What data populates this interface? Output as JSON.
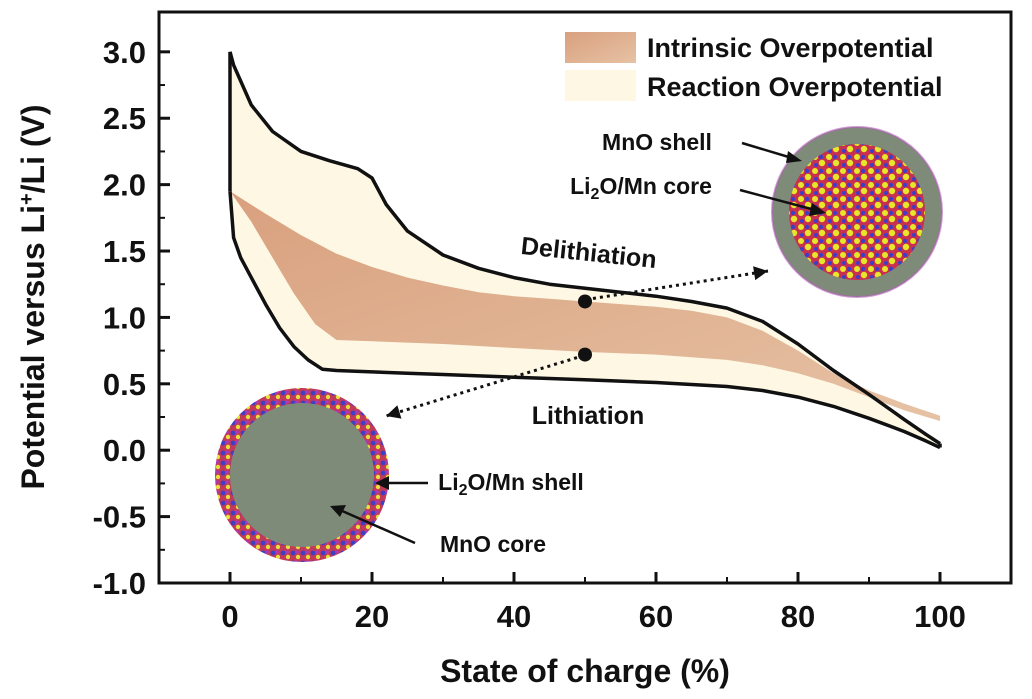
{
  "chart_data": {
    "type": "area",
    "xlabel": "State of charge (%)",
    "ylabel_main": "Potential versus Li",
    "ylabel_sup": "+",
    "ylabel_end": "/Li (V)",
    "xlim": [
      -10,
      110
    ],
    "ylim": [
      -1.0,
      3.3
    ],
    "xticks": [
      0,
      20,
      40,
      60,
      80,
      100
    ],
    "yticks": [
      3.0,
      2.5,
      2.0,
      1.5,
      1.0,
      0.5,
      0.0,
      -0.5,
      -1.0
    ],
    "ytick_labels": [
      "3.0",
      "2.5",
      "2.0",
      "1.5",
      "1.0",
      "0.5",
      "0.0",
      "-0.5",
      "-1.0"
    ],
    "legend": [
      {
        "label": "Intrinsic Overpotential",
        "color": "#dba888"
      },
      {
        "label": "Reaction Overpotential",
        "color": "#fdf7e4"
      }
    ],
    "series": [
      {
        "name": "Delithiation",
        "x": [
          0,
          0.5,
          3,
          6,
          10,
          14,
          18,
          20,
          22,
          25,
          30,
          35,
          40,
          45,
          50,
          55,
          60,
          65,
          70,
          75,
          80,
          85,
          90,
          95,
          98,
          100
        ],
        "y": [
          3.0,
          2.9,
          2.6,
          2.4,
          2.25,
          2.18,
          2.12,
          2.05,
          1.85,
          1.65,
          1.47,
          1.37,
          1.3,
          1.25,
          1.22,
          1.19,
          1.16,
          1.12,
          1.07,
          0.97,
          0.8,
          0.6,
          0.42,
          0.23,
          0.12,
          0.05
        ]
      },
      {
        "name": "Lithiation",
        "x": [
          0,
          0.5,
          1.5,
          3,
          5,
          7,
          9,
          11,
          13,
          15,
          20,
          25,
          30,
          40,
          50,
          60,
          70,
          75,
          80,
          85,
          90,
          95,
          98,
          100
        ],
        "y": [
          1.95,
          1.6,
          1.45,
          1.3,
          1.1,
          0.92,
          0.78,
          0.68,
          0.61,
          0.6,
          0.59,
          0.58,
          0.57,
          0.55,
          0.53,
          0.51,
          0.48,
          0.45,
          0.4,
          0.33,
          0.24,
          0.14,
          0.07,
          0.02
        ]
      }
    ],
    "band_upper": {
      "x": [
        0,
        5,
        10,
        15,
        20,
        25,
        30,
        35,
        40,
        45,
        50,
        55,
        60,
        65,
        70,
        75,
        80,
        85,
        90,
        95,
        100
      ],
      "y": [
        1.95,
        1.78,
        1.62,
        1.48,
        1.38,
        1.3,
        1.24,
        1.19,
        1.16,
        1.14,
        1.12,
        1.1,
        1.08,
        1.05,
        1.0,
        0.9,
        0.75,
        0.58,
        0.45,
        0.35,
        0.26
      ]
    },
    "band_lower": {
      "x": [
        0,
        3,
        6,
        9,
        12,
        15,
        20,
        25,
        30,
        40,
        50,
        60,
        70,
        75,
        80,
        85,
        90,
        95,
        100
      ],
      "y": [
        1.95,
        1.72,
        1.45,
        1.18,
        0.95,
        0.83,
        0.82,
        0.81,
        0.8,
        0.77,
        0.74,
        0.72,
        0.68,
        0.64,
        0.58,
        0.5,
        0.4,
        0.3,
        0.22
      ]
    },
    "points": [
      {
        "x": 50,
        "y": 1.12
      },
      {
        "x": 50,
        "y": 0.72
      }
    ],
    "annotations": {
      "delithiation": "Delithiation",
      "lithiation": "Lithiation",
      "mno_shell": "MnO shell",
      "li2o_mn_core_pre": "Li",
      "li2o_mn_core_sub": "2",
      "li2o_mn_core_post": "O/Mn core",
      "li2o_mn_shell_pre": "Li",
      "li2o_mn_shell_sub": "2",
      "li2o_mn_shell_post": "O/Mn shell",
      "mno_core": "MnO core"
    }
  }
}
